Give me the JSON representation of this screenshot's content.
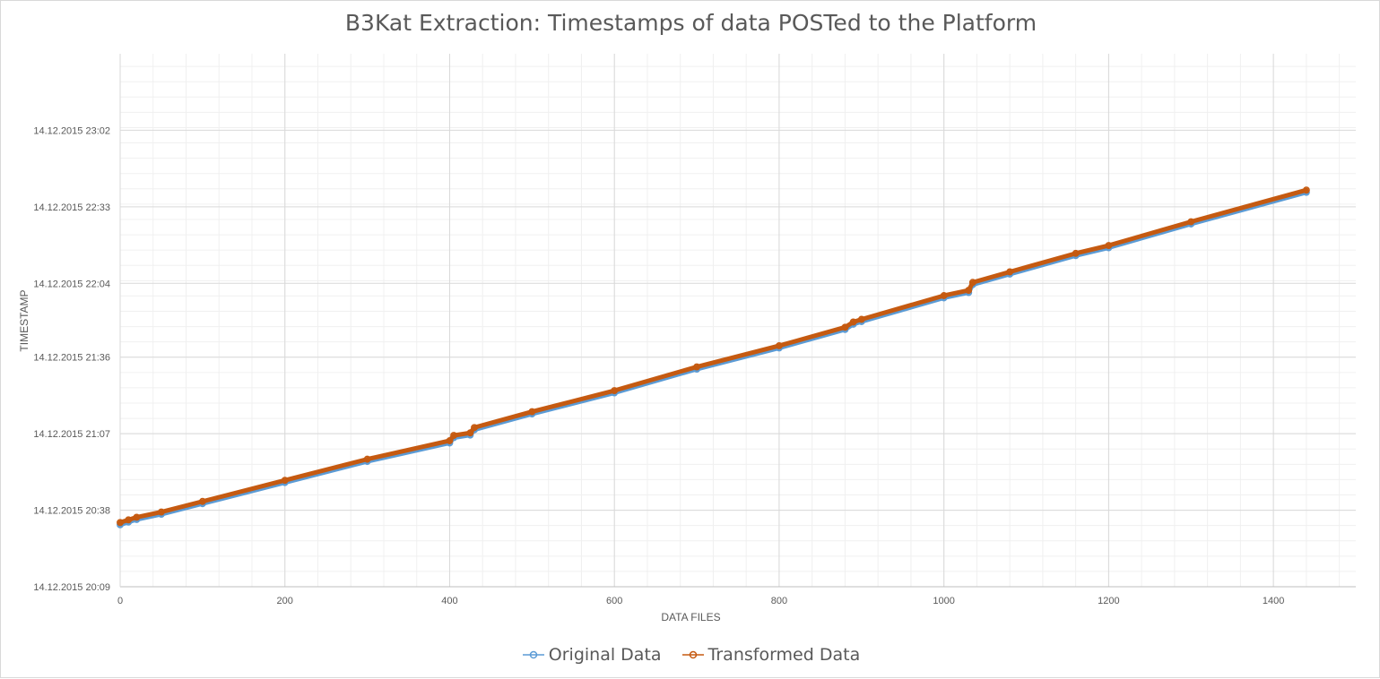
{
  "chart_data": {
    "type": "scatter",
    "title": "B3Kat Extraction: Timestamps of data POSTed to the Platform",
    "xlabel": "DATA FILES",
    "ylabel": "TIMESTAMP",
    "xlim": [
      0,
      1500
    ],
    "x_ticks": [
      0,
      200,
      400,
      600,
      800,
      1000,
      1200,
      1400
    ],
    "x_tick_labels": [
      "0",
      "200",
      "400",
      "600",
      "800",
      "1000",
      "1200",
      "1400"
    ],
    "ylim": [
      "14.12.2015 20:09",
      "14.12.2015 23:31"
    ],
    "y_ticks": [
      "14.12.2015 20:09",
      "14.12.2015 20:38",
      "14.12.2015 21:07",
      "14.12.2015 21:36",
      "14.12.2015 22:04",
      "14.12.2015 22:33",
      "14.12.2015 23:02"
    ],
    "y_tick_labels": [
      "14.12.2015 20:09",
      "14.12.2015 20:38",
      "14.12.2015 21:07",
      "14.12.2015 21:36",
      "14.12.2015 22:04",
      "14.12.2015 22:33",
      "14.12.2015 23:02"
    ],
    "grid": true,
    "minor_grid": true,
    "legend_position": "bottom",
    "series": [
      {
        "name": "Original Data",
        "color": "#5b9bd5",
        "marker": "circle",
        "x": [
          0,
          10,
          20,
          50,
          100,
          200,
          300,
          400,
          405,
          425,
          430,
          500,
          600,
          700,
          800,
          880,
          890,
          900,
          1000,
          1030,
          1035,
          1080,
          1160,
          1200,
          1300,
          1440
        ],
        "y": [
          "14.12.2015 20:33",
          "14.12.2015 20:34",
          "14.12.2015 20:35",
          "14.12.2015 20:37",
          "14.12.2015 20:41",
          "14.12.2015 20:49",
          "14.12.2015 20:57",
          "14.12.2015 21:04",
          "14.12.2015 21:06",
          "14.12.2015 21:07",
          "14.12.2015 21:09",
          "14.12.2015 21:15",
          "14.12.2015 21:23",
          "14.12.2015 21:32",
          "14.12.2015 21:40",
          "14.12.2015 21:47",
          "14.12.2015 21:49",
          "14.12.2015 21:50",
          "14.12.2015 21:59",
          "14.12.2015 22:01",
          "14.12.2015 22:04",
          "14.12.2015 22:08",
          "14.12.2015 22:15",
          "14.12.2015 22:18",
          "14.12.2015 22:27",
          "14.12.2015 22:39"
        ]
      },
      {
        "name": "Transformed Data",
        "color": "#c55a11",
        "marker": "circle",
        "x": [
          0,
          10,
          20,
          50,
          100,
          200,
          300,
          400,
          405,
          425,
          430,
          500,
          600,
          700,
          800,
          880,
          890,
          900,
          1000,
          1030,
          1035,
          1080,
          1160,
          1200,
          1300,
          1440
        ],
        "y": [
          "14.12.2015 20:33",
          "14.12.2015 20:34",
          "14.12.2015 20:35",
          "14.12.2015 20:37",
          "14.12.2015 20:41",
          "14.12.2015 20:49",
          "14.12.2015 20:57",
          "14.12.2015 21:04",
          "14.12.2015 21:06",
          "14.12.2015 21:07",
          "14.12.2015 21:09",
          "14.12.2015 21:15",
          "14.12.2015 21:23",
          "14.12.2015 21:32",
          "14.12.2015 21:40",
          "14.12.2015 21:47",
          "14.12.2015 21:49",
          "14.12.2015 21:50",
          "14.12.2015 21:59",
          "14.12.2015 22:01",
          "14.12.2015 22:04",
          "14.12.2015 22:08",
          "14.12.2015 22:15",
          "14.12.2015 22:18",
          "14.12.2015 22:27",
          "14.12.2015 22:39"
        ]
      }
    ]
  }
}
